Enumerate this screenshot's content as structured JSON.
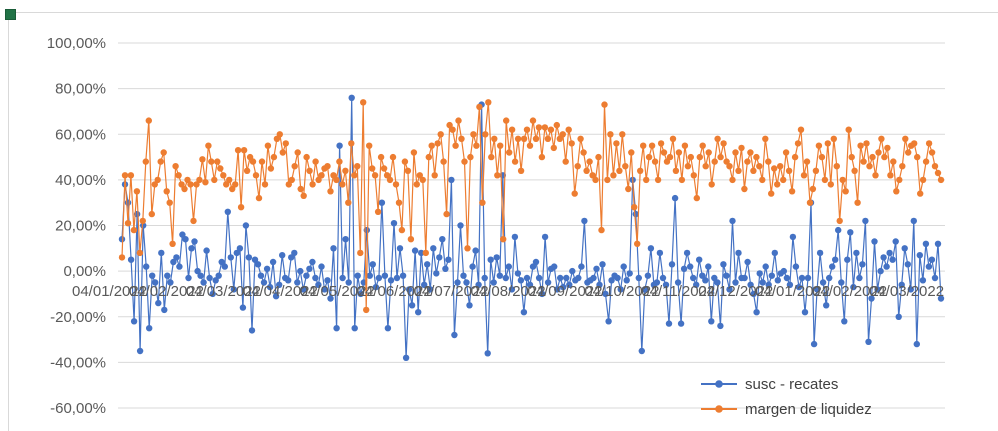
{
  "chart_data": {
    "type": "line",
    "markers": true,
    "y_axis": {
      "min": -60,
      "max": 100,
      "step": 20,
      "tick_labels": [
        "-60,00%",
        "-40,00%",
        "-20,00%",
        "0,00%",
        "20,00%",
        "40,00%",
        "60,00%",
        "80,00%",
        "100,00%"
      ]
    },
    "x_axis": {
      "tick_labels": [
        "04/01/2022",
        "04/02/2022",
        "04/03/2022",
        "04/04/2022",
        "04/05/2022",
        "04/06/2022",
        "04/07/2022",
        "04/08/2022",
        "04/09/2022",
        "04/10/2022",
        "04/11/2022",
        "04/12/2022",
        "04/01/2022",
        "04/02/2022",
        "04/03/2022"
      ]
    },
    "gridlines": true,
    "legend": {
      "position": "bottom-right"
    },
    "series": [
      {
        "name": "susc - recates",
        "color": "#4472c4",
        "values": [
          14,
          38,
          30,
          5,
          -22,
          25,
          -35,
          20,
          2,
          -25,
          -2,
          -5,
          -14,
          8,
          -17,
          -2,
          -5,
          4,
          6,
          2,
          16,
          14,
          -3,
          10,
          13,
          0,
          -2,
          -5,
          9,
          -3,
          -10,
          -4,
          -2,
          4,
          2,
          26,
          6,
          -8,
          8,
          10,
          -16,
          20,
          6,
          -26,
          5,
          3,
          -2,
          -5,
          1,
          -7,
          4,
          -11,
          -6,
          7,
          -3,
          -4,
          6,
          8,
          -5,
          0,
          -8,
          -2,
          1,
          4,
          -3,
          -6,
          2,
          -8,
          -4,
          -12,
          10,
          -25,
          55,
          -3,
          14,
          -5,
          76,
          -25,
          -2,
          -10,
          -5,
          18,
          -2,
          3,
          -7,
          -3,
          30,
          -2,
          -25,
          -4,
          21,
          -3,
          10,
          -2,
          -38,
          -8,
          -15,
          9,
          -18,
          8,
          -6,
          3,
          -8,
          10,
          -1,
          6,
          14,
          1,
          5,
          40,
          -28,
          -5,
          20,
          -2,
          -5,
          -15,
          2,
          9,
          -6,
          73,
          -3,
          -36,
          5,
          -5,
          6,
          -2,
          42,
          -3,
          2,
          -8,
          15,
          -1,
          -4,
          -18,
          -3,
          -6,
          2,
          4,
          -3,
          -10,
          15,
          -5,
          1,
          2,
          -8,
          -3,
          -7,
          -3,
          -6,
          0,
          -4,
          -3,
          2,
          22,
          -5,
          -4,
          -3,
          1,
          -6,
          3,
          -10,
          -22,
          -4,
          -2,
          -3,
          -8,
          2,
          -4,
          -1,
          40,
          25,
          -3,
          -35,
          -8,
          -2,
          10,
          -6,
          -5,
          8,
          -3,
          -6,
          -23,
          3,
          32,
          -5,
          -23,
          1,
          8,
          2,
          -3,
          -6,
          5,
          -2,
          -4,
          2,
          -22,
          -3,
          -5,
          -24,
          3,
          -2,
          -8,
          22,
          -5,
          8,
          -3,
          -3,
          4,
          -6,
          -10,
          -18,
          -1,
          -5,
          2,
          -6,
          -2,
          8,
          -4,
          -1,
          0,
          -3,
          -6,
          15,
          2,
          -7,
          -3,
          -18,
          -3,
          30,
          -32,
          -8,
          8,
          -5,
          -15,
          -3,
          2,
          5,
          18,
          -5,
          -22,
          5,
          17,
          -7,
          8,
          -3,
          3,
          22,
          -31,
          -12,
          13,
          -8,
          0,
          6,
          2,
          8,
          5,
          13,
          -20,
          -6,
          10,
          3,
          -8,
          22,
          -32,
          7,
          -4,
          12,
          2,
          5,
          -3,
          12,
          -12
        ]
      },
      {
        "name": "margen de liquidez",
        "color": "#ed7d31",
        "values": [
          6,
          42,
          21,
          42,
          18,
          35,
          8,
          22,
          48,
          66,
          25,
          38,
          40,
          48,
          52,
          35,
          30,
          12,
          46,
          42,
          38,
          36,
          40,
          38,
          22,
          38,
          40,
          49,
          39,
          55,
          48,
          40,
          48,
          45,
          42,
          38,
          40,
          36,
          38,
          53,
          28,
          53,
          44,
          50,
          48,
          42,
          32,
          48,
          38,
          55,
          45,
          50,
          58,
          60,
          52,
          56,
          38,
          40,
          46,
          52,
          36,
          33,
          50,
          44,
          38,
          48,
          40,
          42,
          45,
          46,
          35,
          42,
          40,
          48,
          38,
          44,
          30,
          56,
          42,
          46,
          8,
          74,
          -17,
          55,
          45,
          42,
          26,
          50,
          45,
          42,
          40,
          50,
          38,
          30,
          18,
          48,
          44,
          14,
          52,
          38,
          42,
          40,
          8,
          50,
          55,
          42,
          56,
          60,
          48,
          25,
          64,
          62,
          55,
          66,
          58,
          48,
          10,
          50,
          60,
          55,
          72,
          30,
          60,
          74,
          50,
          58,
          42,
          55,
          14,
          66,
          52,
          62,
          48,
          58,
          44,
          58,
          62,
          55,
          66,
          58,
          63,
          50,
          63,
          58,
          62,
          54,
          64,
          58,
          60,
          48,
          62,
          56,
          34,
          46,
          58,
          52,
          44,
          48,
          42,
          40,
          50,
          18,
          73,
          40,
          60,
          42,
          56,
          44,
          60,
          46,
          36,
          52,
          28,
          12,
          44,
          55,
          40,
          50,
          55,
          48,
          40,
          56,
          52,
          48,
          50,
          58,
          44,
          52,
          40,
          55,
          46,
          50,
          42,
          32,
          50,
          55,
          46,
          52,
          38,
          48,
          58,
          50,
          56,
          48,
          46,
          40,
          52,
          44,
          54,
          36,
          48,
          52,
          44,
          50,
          46,
          40,
          58,
          48,
          34,
          45,
          38,
          46,
          40,
          52,
          44,
          35,
          50,
          56,
          62,
          42,
          48,
          30,
          36,
          44,
          55,
          50,
          40,
          56,
          38,
          58,
          46,
          22,
          40,
          35,
          62,
          50,
          44,
          30,
          55,
          48,
          56,
          46,
          50,
          42,
          52,
          58,
          50,
          54,
          42,
          48,
          35,
          40,
          46,
          58,
          52,
          55,
          56,
          50,
          34,
          40,
          48,
          56,
          52,
          46,
          43,
          40
        ]
      }
    ]
  }
}
